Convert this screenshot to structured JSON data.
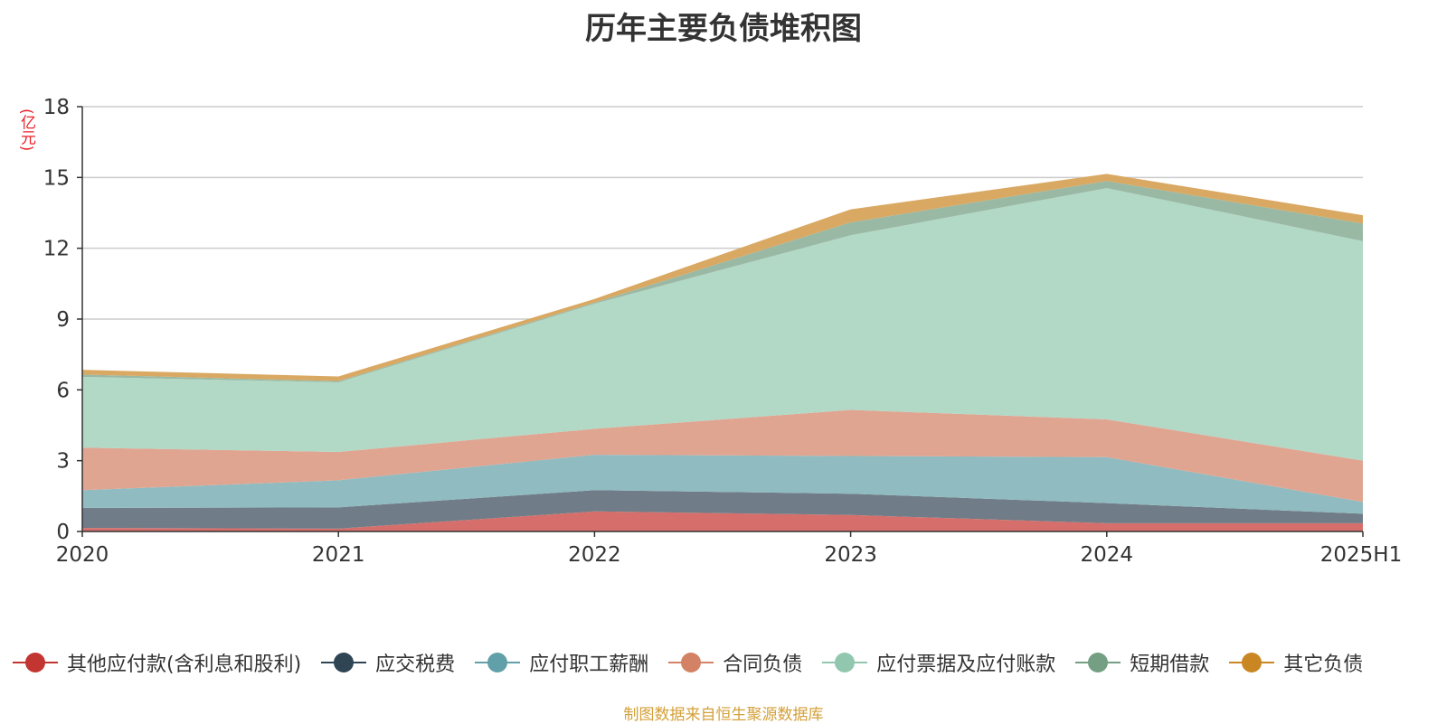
{
  "title": "历年主要负债堆积图",
  "unit_label": "(亿元)",
  "source_note": "制图数据来自恒生聚源数据库",
  "chart_data": {
    "type": "area",
    "stacked": true,
    "title": "历年主要负债堆积图",
    "ylabel": "(亿元)",
    "categories": [
      "2020",
      "2021",
      "2022",
      "2023",
      "2024",
      "2025H1"
    ],
    "ylim": [
      0,
      18
    ],
    "yticks": [
      0,
      3,
      6,
      9,
      12,
      15,
      18
    ],
    "grid": true,
    "legend_position": "bottom",
    "series": [
      {
        "name": "其他应付款(含利息和股利)",
        "color": "#c23531",
        "fill": "#d66f6b",
        "values": [
          0.15,
          0.12,
          0.85,
          0.7,
          0.35,
          0.35
        ]
      },
      {
        "name": "应交税费",
        "color": "#2f4554",
        "fill": "#707c87",
        "values": [
          0.85,
          0.9,
          0.9,
          0.9,
          0.85,
          0.4
        ]
      },
      {
        "name": "应付职工薪酬",
        "color": "#61a0a8",
        "fill": "#90bbc0",
        "values": [
          0.75,
          1.15,
          1.5,
          1.6,
          1.95,
          0.5
        ]
      },
      {
        "name": "合同负债",
        "color": "#d48265",
        "fill": "#e0a591",
        "values": [
          1.8,
          1.2,
          1.1,
          1.95,
          1.6,
          1.75
        ]
      },
      {
        "name": "应付票据及应付账款",
        "color": "#91c7ae",
        "fill": "#b2d8c6",
        "values": [
          3.0,
          2.95,
          5.3,
          7.4,
          9.8,
          9.3
        ]
      },
      {
        "name": "短期借款",
        "color": "#749f83",
        "fill": "#9ab9a4",
        "values": [
          0.1,
          0.05,
          0.05,
          0.55,
          0.3,
          0.75
        ]
      },
      {
        "name": "其它负债",
        "color": "#ca8622",
        "fill": "#d9a862",
        "values": [
          0.2,
          0.2,
          0.15,
          0.55,
          0.3,
          0.35
        ]
      }
    ]
  }
}
